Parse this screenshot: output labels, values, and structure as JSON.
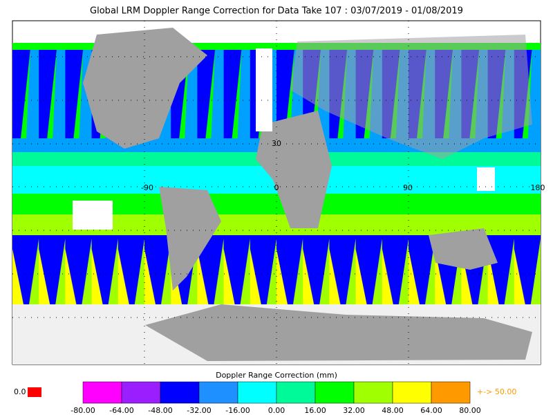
{
  "title": "Global LRM Doppler Range Correction for Data Take 107 : 03/07/2019 - 01/08/2019",
  "map_labels": [
    "30",
    "-90",
    "0",
    "90",
    "180"
  ],
  "colorbar": {
    "title": "Doppler Range Correction (mm)",
    "colors": [
      "#ff00ff",
      "#9b1eff",
      "#0000ff",
      "#1e90ff",
      "#00ffff",
      "#00fa9a",
      "#00ff00",
      "#a0ff00",
      "#ffff00",
      "#ff9900"
    ],
    "ticks": [
      "-80.00",
      "-64.00",
      "-48.00",
      "-32.00",
      "-16.00",
      "0.00",
      "16.00",
      "32.00",
      "48.00",
      "64.00",
      "80.00"
    ]
  },
  "undershoot": {
    "label": "0.0",
    "color": "#ff0000"
  },
  "overshoot": {
    "label": "+-> 50.00",
    "color": "#ff9900"
  }
}
